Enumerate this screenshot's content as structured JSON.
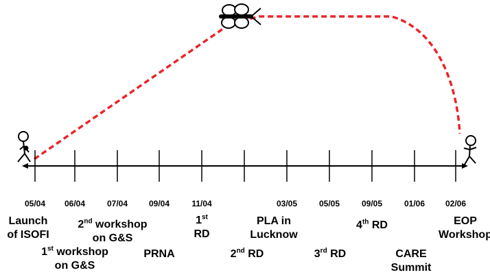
{
  "timeline": {
    "dates": [
      "05/04",
      "06/04",
      "07/04",
      "09/04",
      "11/04",
      "03/05",
      "05/05",
      "09/05",
      "01/06",
      "02/06"
    ],
    "events": [
      {
        "id": "launch",
        "lines": [
          {
            "pre": "Launch",
            "sup": "",
            "post": ""
          },
          {
            "pre": "of ISOFI",
            "sup": "",
            "post": ""
          }
        ]
      },
      {
        "id": "first-workshop",
        "lines": [
          {
            "pre": "1",
            "sup": "st",
            "post": " workshop"
          },
          {
            "pre": "on G&S",
            "sup": "",
            "post": ""
          }
        ]
      },
      {
        "id": "second-workshop",
        "lines": [
          {
            "pre": "2",
            "sup": "nd",
            "post": " workshop"
          },
          {
            "pre": "on G&S",
            "sup": "",
            "post": ""
          }
        ]
      },
      {
        "id": "prna",
        "lines": [
          {
            "pre": "PRNA",
            "sup": "",
            "post": ""
          }
        ]
      },
      {
        "id": "first-rd",
        "lines": [
          {
            "pre": "1",
            "sup": "st",
            "post": ""
          },
          {
            "pre": "RD",
            "sup": "",
            "post": ""
          }
        ]
      },
      {
        "id": "second-rd",
        "lines": [
          {
            "pre": "2",
            "sup": "nd",
            "post": " RD"
          }
        ]
      },
      {
        "id": "pla-lucknow",
        "lines": [
          {
            "pre": "PLA in",
            "sup": "",
            "post": ""
          },
          {
            "pre": "Lucknow",
            "sup": "",
            "post": ""
          }
        ]
      },
      {
        "id": "third-rd",
        "lines": [
          {
            "pre": "3",
            "sup": "rd",
            "post": " RD"
          }
        ]
      },
      {
        "id": "fourth-rd",
        "lines": [
          {
            "pre": "4",
            "sup": "th",
            "post": " RD"
          }
        ]
      },
      {
        "id": "care-summit",
        "lines": [
          {
            "pre": "CARE",
            "sup": "",
            "post": ""
          },
          {
            "pre": "Summit",
            "sup": "",
            "post": ""
          }
        ]
      },
      {
        "id": "eop-workshop",
        "lines": [
          {
            "pre": "EOP",
            "sup": "",
            "post": ""
          },
          {
            "pre": "Workshop",
            "sup": "",
            "post": ""
          }
        ]
      }
    ]
  },
  "colors": {
    "path": "#e8262b",
    "ink": "#000000"
  },
  "icons": [
    "stick-figure-start-icon",
    "butterfly-icon",
    "stick-figure-end-icon"
  ]
}
